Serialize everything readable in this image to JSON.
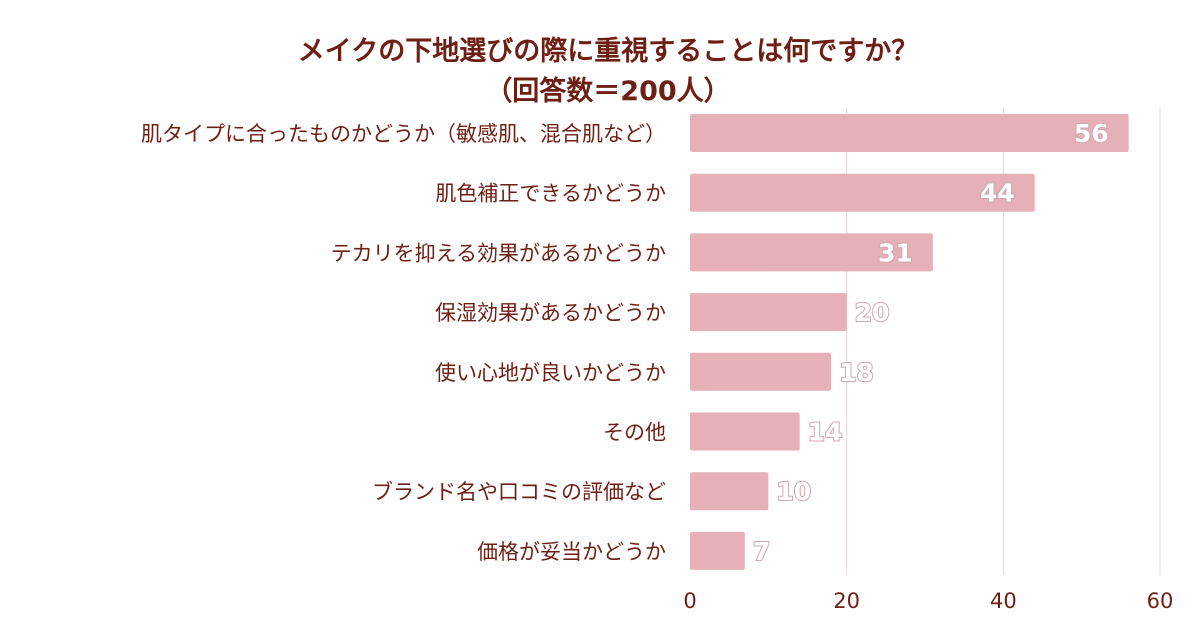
{
  "chart_data": {
    "type": "bar",
    "orientation": "horizontal",
    "title_lines": [
      "メイクの下地選びの際に重視することは何ですか？",
      "（回答数＝200人）"
    ],
    "categories": [
      "肌タイプに合ったものかどうか（敏感肌、混合肌など）",
      "肌色補正できるかどうか",
      "テカリを抑える効果があるかどうか",
      "保湿効果があるかどうか",
      "使い心地が良いかどうか",
      "その他",
      "ブランド名や口コミの評価など",
      "価格が妥当かどうか"
    ],
    "values": [
      56,
      44,
      31,
      20,
      18,
      14,
      10,
      7
    ],
    "xlim": [
      0,
      60
    ],
    "xticks": [
      0,
      20,
      40,
      60
    ],
    "grid": true,
    "colors": {
      "bar": "#e5b0b8",
      "text": "#6e1f14",
      "grid": "#e3dad6"
    }
  }
}
